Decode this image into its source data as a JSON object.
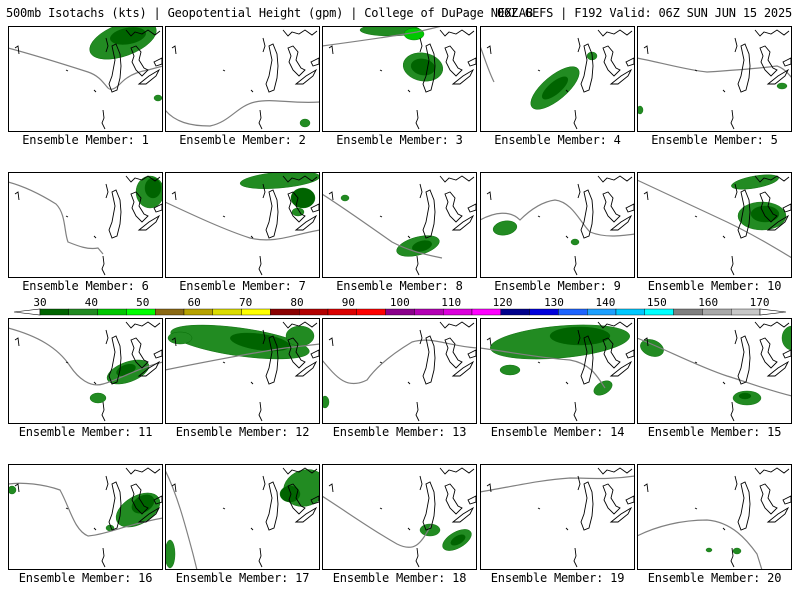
{
  "header": {
    "left": "500mb Isotachs (kts) | Geopotential Height (gpm) | College of DuPage NEXLAB",
    "right": "06Z GEFS | F192 Valid: 06Z SUN JUN 15 2025"
  },
  "label_prefix": "Ensemble Member: ",
  "members": [
    {
      "number": "1",
      "height_line": "w_loop"
    },
    {
      "number": "2",
      "height_line": "bowl"
    },
    {
      "number": "3",
      "height_line": "ne_ridge"
    },
    {
      "number": "4",
      "height_line": "arc_north"
    },
    {
      "number": "5",
      "height_line": "flat_north"
    },
    {
      "number": "6",
      "height_line": "diagonal"
    },
    {
      "number": "7",
      "height_line": "sweep"
    },
    {
      "number": "8",
      "height_line": "diag_east"
    },
    {
      "number": "9",
      "height_line": "loop_low"
    },
    {
      "number": "10",
      "height_line": "long_diag"
    },
    {
      "number": "11",
      "height_line": "trough"
    },
    {
      "number": "12",
      "height_line": "flat_mid"
    },
    {
      "number": "13",
      "height_line": "bump"
    },
    {
      "number": "14",
      "height_line": "dip_mid"
    },
    {
      "number": "15",
      "height_line": "sweep_low"
    },
    {
      "number": "16",
      "height_line": "trough_deep"
    },
    {
      "number": "17",
      "height_line": "vertical"
    },
    {
      "number": "18",
      "height_line": "diag_low"
    },
    {
      "number": "19",
      "height_line": "flat_top"
    },
    {
      "number": "20",
      "height_line": "curve_low"
    }
  ],
  "colorbar": {
    "ticks": [
      "30",
      "40",
      "50",
      "60",
      "70",
      "80",
      "90",
      "100",
      "110",
      "120",
      "130",
      "140",
      "150",
      "160",
      "170"
    ],
    "colors": [
      "#006400",
      "#228b22",
      "#00c800",
      "#00ff00",
      "#8b6914",
      "#b8a200",
      "#dcdc00",
      "#ffff00",
      "#8b0000",
      "#b40000",
      "#dc0000",
      "#ff0000",
      "#8b008b",
      "#b400b4",
      "#dc00dc",
      "#ff00ff",
      "#00008b",
      "#0000dc",
      "#1e64ff",
      "#1ea0ff",
      "#00c8ff",
      "#00ffff",
      "#808080",
      "#a9a9a9",
      "#c8c8c8"
    ]
  },
  "colors": {
    "contour": "#808080",
    "isotach_dark": "#006400",
    "isotach_mid": "#228b22",
    "isotach_light": "#00c800",
    "coast": "#000000"
  }
}
